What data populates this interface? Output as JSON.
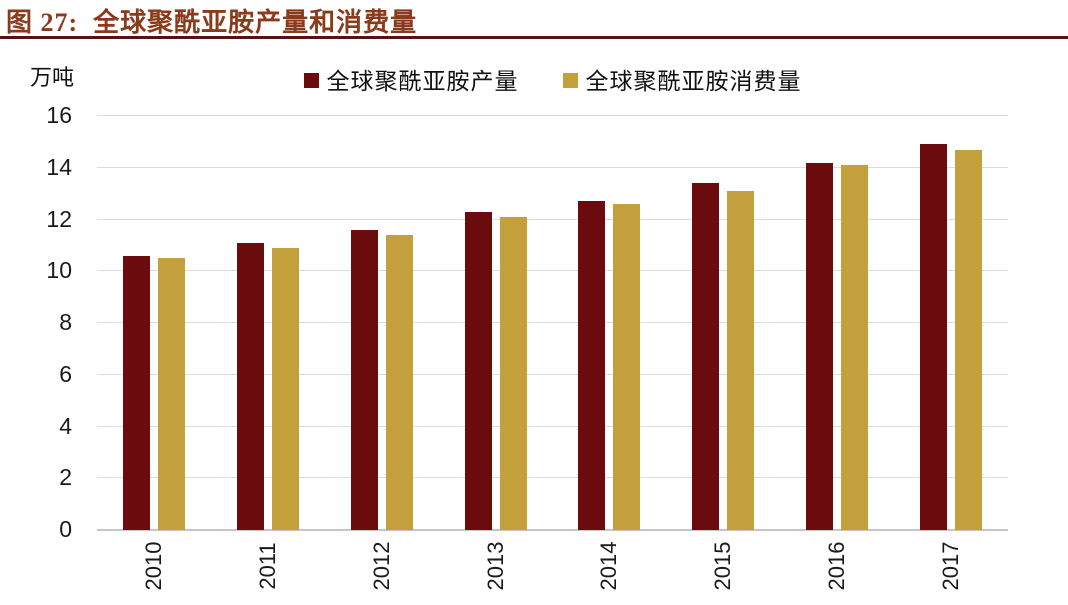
{
  "header": {
    "title": "图 27:  全球聚酰亚胺产量和消费量"
  },
  "chart_data": {
    "type": "bar",
    "title": "全球聚酰亚胺产量和消费量",
    "unit_label": "万吨",
    "categories": [
      "2010",
      "2011",
      "2012",
      "2013",
      "2014",
      "2015",
      "2016",
      "2017"
    ],
    "series": [
      {
        "name": "全球聚酰亚胺产量",
        "color": "#6B0B0D",
        "values": [
          10.6,
          11.1,
          11.6,
          12.3,
          12.7,
          13.4,
          14.2,
          14.9
        ]
      },
      {
        "name": "全球聚酰亚胺消费量",
        "color": "#C4A03C",
        "values": [
          10.5,
          10.9,
          11.4,
          12.1,
          12.6,
          13.1,
          14.1,
          14.7
        ]
      }
    ],
    "xlabel": "",
    "ylabel": "万吨",
    "ylim": [
      0,
      16
    ],
    "ytick_step": 2,
    "yticks": [
      0,
      2,
      4,
      6,
      8,
      10,
      12,
      14,
      16
    ],
    "grid": true,
    "legend_position": "top",
    "x_tick_rotation_degrees": 90
  },
  "colors": {
    "title_text": "#8A3B1B",
    "title_rule": "#541414",
    "gridline": "#DCDCDC",
    "baseline": "#C6C6C6",
    "tick_label": "#1A1A1A",
    "background": "#FFFFFF",
    "production_bar": "#6B0B0D",
    "consumption_bar": "#C4A03C"
  }
}
